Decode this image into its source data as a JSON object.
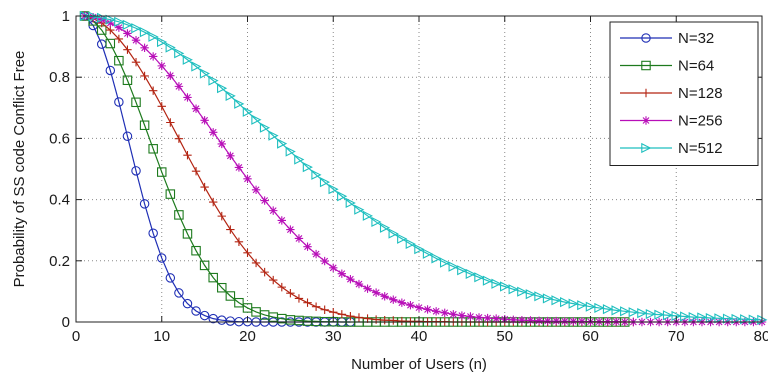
{
  "chart_data": {
    "type": "line",
    "title": "",
    "xlabel": "Number of Users (n)",
    "ylabel": "Probability of SS code Conflict Free",
    "xlim": [
      0,
      80
    ],
    "ylim": [
      0,
      1
    ],
    "xticks": [
      "0",
      "10",
      "20",
      "30",
      "40",
      "50",
      "60",
      "70",
      "80"
    ],
    "yticks": [
      "0",
      "0.2",
      "0.4",
      "0.6",
      "0.8",
      "1"
    ],
    "grid": true,
    "legend_position": "top-right",
    "series": [
      {
        "name": "N=32",
        "color": "#1f2fb5",
        "marker": "circle",
        "x": [
          1,
          2,
          3,
          4,
          5,
          6,
          7,
          8,
          9,
          10,
          11,
          12,
          13,
          14,
          15,
          16,
          17,
          18,
          19,
          20,
          21,
          22,
          23,
          24,
          25,
          26,
          27,
          28,
          29,
          30,
          31,
          32
        ],
        "y": [
          1.0,
          0.969,
          0.908,
          0.822,
          0.719,
          0.607,
          0.494,
          0.386,
          0.29,
          0.209,
          0.144,
          0.095,
          0.06,
          0.036,
          0.021,
          0.011,
          0.006,
          0.003,
          0.001,
          0.001,
          0,
          0,
          0,
          0,
          0,
          0,
          0,
          0,
          0,
          0,
          0,
          0
        ]
      },
      {
        "name": "N=64",
        "color": "#1d7a1d",
        "marker": "square",
        "x": [
          1,
          2,
          3,
          4,
          5,
          6,
          7,
          8,
          9,
          10,
          11,
          12,
          13,
          14,
          15,
          16,
          17,
          18,
          19,
          20,
          21,
          22,
          23,
          24,
          25,
          26,
          27,
          28,
          29,
          30,
          31,
          32,
          33,
          34,
          35,
          36,
          37,
          38,
          39,
          40,
          41,
          42,
          43,
          44,
          45,
          46,
          47,
          48,
          49,
          50,
          51,
          52,
          53,
          54,
          55,
          56,
          57,
          58,
          59,
          60,
          61,
          62,
          63,
          64
        ],
        "y": [
          1.0,
          0.984,
          0.954,
          0.91,
          0.854,
          0.79,
          0.718,
          0.643,
          0.566,
          0.49,
          0.418,
          0.35,
          0.288,
          0.233,
          0.185,
          0.145,
          0.112,
          0.085,
          0.063,
          0.046,
          0.033,
          0.023,
          0.016,
          0.011,
          0.007,
          0.005,
          0.003,
          0.002,
          0.001,
          0.001,
          0,
          0,
          0,
          0,
          0,
          0,
          0,
          0,
          0,
          0,
          0,
          0,
          0,
          0,
          0,
          0,
          0,
          0,
          0,
          0,
          0,
          0,
          0,
          0,
          0,
          0,
          0,
          0,
          0,
          0,
          0,
          0,
          0,
          0
        ]
      },
      {
        "name": "N=128",
        "color": "#b32412",
        "marker": "plus",
        "x": [
          1,
          2,
          3,
          4,
          5,
          6,
          7,
          8,
          9,
          10,
          11,
          12,
          13,
          14,
          15,
          16,
          17,
          18,
          19,
          20,
          21,
          22,
          23,
          24,
          25,
          26,
          27,
          28,
          29,
          30,
          31,
          32,
          33,
          34,
          35,
          36,
          37,
          38,
          39,
          40,
          41,
          42,
          43,
          44,
          45,
          46,
          47,
          48,
          49,
          50,
          51,
          52,
          53,
          54,
          55,
          56,
          57,
          58,
          59,
          60,
          61,
          62,
          63,
          64,
          65
        ],
        "y": [
          1.0,
          0.992,
          0.977,
          0.954,
          0.925,
          0.89,
          0.849,
          0.804,
          0.756,
          0.705,
          0.652,
          0.599,
          0.545,
          0.493,
          0.441,
          0.392,
          0.346,
          0.302,
          0.262,
          0.226,
          0.193,
          0.163,
          0.137,
          0.114,
          0.094,
          0.077,
          0.063,
          0.05,
          0.04,
          0.032,
          0.025,
          0.019,
          0.015,
          0.011,
          0.008,
          0.006,
          0.005,
          0.003,
          0.002,
          0.002,
          0.001,
          0.001,
          0.001,
          0,
          0,
          0,
          0,
          0,
          0,
          0,
          0,
          0,
          0,
          0,
          0,
          0,
          0,
          0,
          0,
          0,
          0,
          0,
          0,
          0,
          0
        ]
      },
      {
        "name": "N=256",
        "color": "#b80fb8",
        "marker": "asterisk",
        "x": [
          1,
          2,
          3,
          4,
          5,
          6,
          7,
          8,
          9,
          10,
          11,
          12,
          13,
          14,
          15,
          16,
          17,
          18,
          19,
          20,
          21,
          22,
          23,
          24,
          25,
          26,
          27,
          28,
          29,
          30,
          31,
          32,
          33,
          34,
          35,
          36,
          37,
          38,
          39,
          40,
          41,
          42,
          43,
          44,
          45,
          46,
          47,
          48,
          49,
          50,
          51,
          52,
          53,
          54,
          55,
          56,
          57,
          58,
          59,
          60,
          61,
          62,
          63,
          64,
          65,
          66,
          67,
          68,
          69,
          70,
          71,
          72,
          73,
          74,
          75,
          76,
          77,
          78,
          79,
          80
        ],
        "y": [
          1.0,
          0.996,
          0.988,
          0.977,
          0.962,
          0.943,
          0.921,
          0.896,
          0.868,
          0.837,
          0.805,
          0.77,
          0.734,
          0.697,
          0.659,
          0.62,
          0.582,
          0.543,
          0.505,
          0.468,
          0.432,
          0.397,
          0.364,
          0.332,
          0.302,
          0.273,
          0.246,
          0.222,
          0.199,
          0.177,
          0.158,
          0.14,
          0.124,
          0.109,
          0.096,
          0.084,
          0.073,
          0.063,
          0.055,
          0.047,
          0.041,
          0.035,
          0.03,
          0.025,
          0.021,
          0.018,
          0.015,
          0.013,
          0.011,
          0.009,
          0.007,
          0.006,
          0.005,
          0.004,
          0.003,
          0.003,
          0.002,
          0.002,
          0.002,
          0.001,
          0.001,
          0.001,
          0.001,
          0,
          0,
          0,
          0,
          0,
          0,
          0,
          0,
          0,
          0,
          0,
          0,
          0,
          0,
          0,
          0,
          0
        ]
      },
      {
        "name": "N=512",
        "color": "#1fbfbf",
        "marker": "triangle-right",
        "x": [
          1,
          2,
          3,
          4,
          5,
          6,
          7,
          8,
          9,
          10,
          11,
          12,
          13,
          14,
          15,
          16,
          17,
          18,
          19,
          20,
          21,
          22,
          23,
          24,
          25,
          26,
          27,
          28,
          29,
          30,
          31,
          32,
          33,
          34,
          35,
          36,
          37,
          38,
          39,
          40,
          41,
          42,
          43,
          44,
          45,
          46,
          47,
          48,
          49,
          50,
          51,
          52,
          53,
          54,
          55,
          56,
          57,
          58,
          59,
          60,
          61,
          62,
          63,
          64,
          65,
          66,
          67,
          68,
          69,
          70,
          71,
          72,
          73,
          74,
          75,
          76,
          77,
          78,
          79,
          80
        ],
        "y": [
          1.0,
          0.998,
          0.994,
          0.988,
          0.981,
          0.971,
          0.96,
          0.947,
          0.932,
          0.915,
          0.897,
          0.878,
          0.857,
          0.835,
          0.812,
          0.789,
          0.764,
          0.739,
          0.713,
          0.687,
          0.661,
          0.635,
          0.609,
          0.583,
          0.557,
          0.531,
          0.506,
          0.481,
          0.457,
          0.434,
          0.411,
          0.389,
          0.367,
          0.347,
          0.327,
          0.308,
          0.289,
          0.272,
          0.255,
          0.238,
          0.223,
          0.208,
          0.194,
          0.181,
          0.169,
          0.157,
          0.146,
          0.135,
          0.125,
          0.116,
          0.107,
          0.099,
          0.091,
          0.084,
          0.077,
          0.071,
          0.065,
          0.06,
          0.055,
          0.05,
          0.046,
          0.042,
          0.038,
          0.035,
          0.032,
          0.029,
          0.026,
          0.024,
          0.022,
          0.02,
          0.018,
          0.016,
          0.015,
          0.013,
          0.012,
          0.011,
          0.01,
          0.009,
          0.008,
          0.007
        ]
      }
    ]
  }
}
